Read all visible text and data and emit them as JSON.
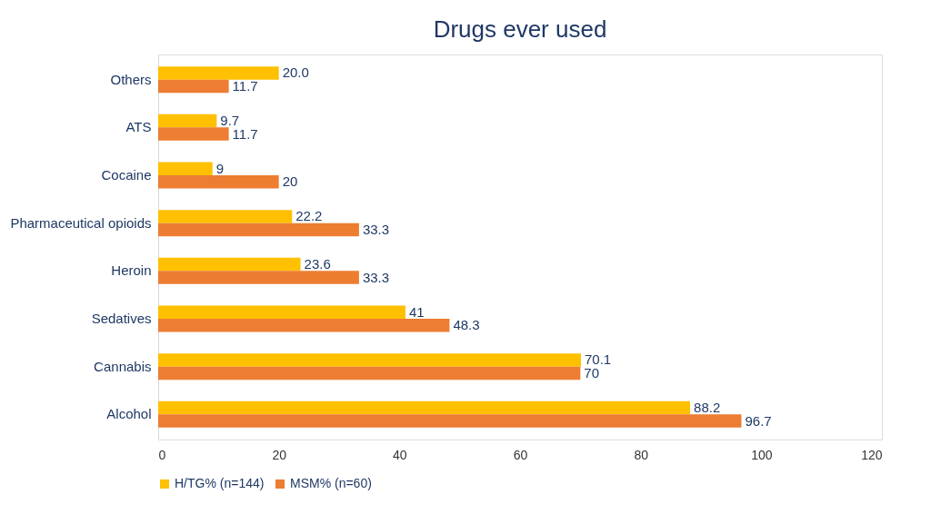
{
  "chart_data": {
    "type": "bar",
    "orientation": "horizontal",
    "title": "Drugs ever used",
    "categories": [
      "Others",
      "ATS",
      "Cocaine",
      "Pharmaceutical opioids",
      "Heroin",
      "Sedatives",
      "Cannabis",
      "Alcohol"
    ],
    "series": [
      {
        "name": "H/TG% (n=144)",
        "color": "#ffc000",
        "values": [
          20.0,
          9.7,
          9,
          22.2,
          23.6,
          41,
          70.1,
          88.2
        ],
        "value_labels": [
          "20.0",
          "9.7",
          "9",
          "22.2",
          "23.6",
          "41",
          "70.1",
          "88.2"
        ]
      },
      {
        "name": "MSM% (n=60)",
        "color": "#ed7d31",
        "values": [
          11.7,
          11.7,
          20,
          33.3,
          33.3,
          48.3,
          70,
          96.7
        ],
        "value_labels": [
          "11.7",
          "11.7",
          "20",
          "33.3",
          "33.3",
          "48.3",
          "70",
          "96.7"
        ]
      }
    ],
    "xlim": [
      0,
      120
    ],
    "xticks": [
      0,
      20,
      40,
      60,
      80,
      100,
      120
    ],
    "grid": false,
    "legend": "bottom"
  }
}
